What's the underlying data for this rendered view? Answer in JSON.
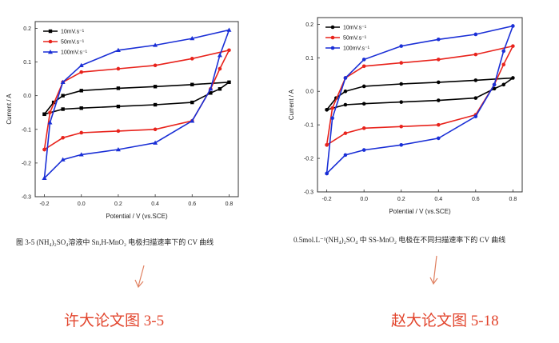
{
  "left_panel": {
    "caption": "图 3-5 (NH₄)₂SO₄溶液中 Sn,H-MnO₂ 电极扫描速率下的 CV 曲线",
    "footer": "许大论文图 3-5"
  },
  "right_panel": {
    "caption": "0.5mol.L⁻¹(NH₄)₂SO₄ 中 SS-MnO₂ 电极在不同扫描速率下的 CV 曲线",
    "footer": "赵大论文图 5-18"
  },
  "chart_data": [
    {
      "type": "line",
      "title": "",
      "xlabel": "Potential / V (vs.SCE)",
      "ylabel": "Current / A",
      "xlim": [
        -0.25,
        0.85
      ],
      "ylim": [
        -0.3,
        0.22
      ],
      "xticks": [
        -0.2,
        0.0,
        0.2,
        0.4,
        0.6,
        0.8
      ],
      "xtick_labels": [
        "-0.2",
        "0.0",
        "0.2",
        "0.4",
        "0.6",
        "0.8"
      ],
      "yticks": [
        -0.3,
        -0.2,
        -0.1,
        0.0,
        0.1,
        0.2
      ],
      "ytick_labels": [
        "-0.3",
        "-0.2",
        "-0.1",
        "0.0",
        "0.1",
        "0.2"
      ],
      "legend_position": "top-left",
      "series": [
        {
          "name": "10mV.s⁻¹",
          "color": "#000000",
          "marker": "square",
          "upper": [
            [
              -0.2,
              -0.055
            ],
            [
              -0.15,
              -0.02
            ],
            [
              -0.1,
              0.0
            ],
            [
              0.0,
              0.015
            ],
            [
              0.2,
              0.022
            ],
            [
              0.4,
              0.027
            ],
            [
              0.6,
              0.033
            ],
            [
              0.8,
              0.04
            ]
          ],
          "lower": [
            [
              0.8,
              0.04
            ],
            [
              0.75,
              0.02
            ],
            [
              0.7,
              0.008
            ],
            [
              0.6,
              -0.02
            ],
            [
              0.4,
              -0.027
            ],
            [
              0.2,
              -0.032
            ],
            [
              0.0,
              -0.037
            ],
            [
              -0.1,
              -0.04
            ],
            [
              -0.2,
              -0.055
            ]
          ]
        },
        {
          "name": "50mV.s⁻¹",
          "color": "#e8231c",
          "marker": "circle",
          "upper": [
            [
              -0.2,
              -0.16
            ],
            [
              -0.17,
              -0.05
            ],
            [
              -0.1,
              0.04
            ],
            [
              0.0,
              0.07
            ],
            [
              0.2,
              0.08
            ],
            [
              0.4,
              0.09
            ],
            [
              0.6,
              0.11
            ],
            [
              0.8,
              0.135
            ]
          ],
          "lower": [
            [
              0.8,
              0.135
            ],
            [
              0.75,
              0.08
            ],
            [
              0.7,
              0.02
            ],
            [
              0.6,
              -0.075
            ],
            [
              0.4,
              -0.1
            ],
            [
              0.2,
              -0.105
            ],
            [
              0.0,
              -0.11
            ],
            [
              -0.1,
              -0.125
            ],
            [
              -0.2,
              -0.16
            ]
          ]
        },
        {
          "name": "100mV.s⁻¹",
          "color": "#1a2fd6",
          "marker": "triangle",
          "upper": [
            [
              -0.2,
              -0.245
            ],
            [
              -0.17,
              -0.08
            ],
            [
              -0.1,
              0.04
            ],
            [
              0.0,
              0.09
            ],
            [
              0.2,
              0.135
            ],
            [
              0.4,
              0.15
            ],
            [
              0.6,
              0.17
            ],
            [
              0.8,
              0.195
            ]
          ],
          "lower": [
            [
              0.8,
              0.195
            ],
            [
              0.75,
              0.12
            ],
            [
              0.7,
              0.02
            ],
            [
              0.6,
              -0.075
            ],
            [
              0.4,
              -0.14
            ],
            [
              0.2,
              -0.16
            ],
            [
              0.0,
              -0.175
            ],
            [
              -0.1,
              -0.19
            ],
            [
              -0.2,
              -0.245
            ]
          ]
        }
      ]
    },
    {
      "type": "line",
      "title": "",
      "xlabel": "Potential / V (vs.SCE)",
      "ylabel": "Current / A",
      "xlim": [
        -0.25,
        0.85
      ],
      "ylim": [
        -0.3,
        0.22
      ],
      "xticks": [
        -0.2,
        0.0,
        0.2,
        0.4,
        0.6,
        0.8
      ],
      "xtick_labels": [
        "-0.2",
        "0.0",
        "0.2",
        "0.4",
        "0.6",
        "0.8"
      ],
      "yticks": [
        -0.3,
        -0.2,
        -0.1,
        0.0,
        0.1,
        0.2
      ],
      "ytick_labels": [
        "-0.3",
        "-0.2",
        "-0.1",
        "0.0",
        "0.1",
        "0.2"
      ],
      "legend_position": "top-left",
      "series": [
        {
          "name": "10mV.s⁻¹",
          "color": "#000000",
          "marker": "circle",
          "upper": [
            [
              -0.2,
              -0.055
            ],
            [
              -0.15,
              -0.02
            ],
            [
              -0.1,
              0.0
            ],
            [
              0.0,
              0.015
            ],
            [
              0.2,
              0.022
            ],
            [
              0.4,
              0.027
            ],
            [
              0.6,
              0.033
            ],
            [
              0.8,
              0.04
            ]
          ],
          "lower": [
            [
              0.8,
              0.04
            ],
            [
              0.75,
              0.02
            ],
            [
              0.7,
              0.008
            ],
            [
              0.6,
              -0.02
            ],
            [
              0.4,
              -0.027
            ],
            [
              0.2,
              -0.032
            ],
            [
              0.0,
              -0.037
            ],
            [
              -0.1,
              -0.04
            ],
            [
              -0.2,
              -0.055
            ]
          ]
        },
        {
          "name": "50mV.s⁻¹",
          "color": "#e8231c",
          "marker": "circle",
          "upper": [
            [
              -0.2,
              -0.16
            ],
            [
              -0.17,
              -0.05
            ],
            [
              -0.1,
              0.04
            ],
            [
              0.0,
              0.075
            ],
            [
              0.2,
              0.085
            ],
            [
              0.4,
              0.095
            ],
            [
              0.6,
              0.11
            ],
            [
              0.8,
              0.135
            ]
          ],
          "lower": [
            [
              0.8,
              0.135
            ],
            [
              0.75,
              0.08
            ],
            [
              0.7,
              0.02
            ],
            [
              0.6,
              -0.07
            ],
            [
              0.4,
              -0.1
            ],
            [
              0.2,
              -0.105
            ],
            [
              0.0,
              -0.11
            ],
            [
              -0.1,
              -0.125
            ],
            [
              -0.2,
              -0.16
            ]
          ]
        },
        {
          "name": "100mV.s⁻¹",
          "color": "#1a2fd6",
          "marker": "circle",
          "upper": [
            [
              -0.2,
              -0.245
            ],
            [
              -0.17,
              -0.08
            ],
            [
              -0.1,
              0.04
            ],
            [
              0.0,
              0.095
            ],
            [
              0.2,
              0.135
            ],
            [
              0.4,
              0.155
            ],
            [
              0.6,
              0.17
            ],
            [
              0.8,
              0.195
            ]
          ],
          "lower": [
            [
              0.8,
              0.195
            ],
            [
              0.75,
              0.12
            ],
            [
              0.7,
              0.02
            ],
            [
              0.6,
              -0.075
            ],
            [
              0.4,
              -0.14
            ],
            [
              0.2,
              -0.16
            ],
            [
              0.0,
              -0.175
            ],
            [
              -0.1,
              -0.19
            ],
            [
              -0.2,
              -0.245
            ]
          ]
        }
      ]
    }
  ],
  "colors": {
    "footer_text": "#e2442c",
    "arrow": "#e08060"
  }
}
